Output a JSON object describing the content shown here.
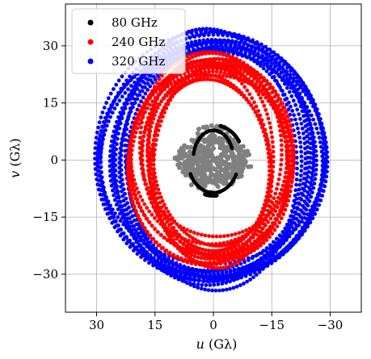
{
  "chart_data": {
    "type": "scatter",
    "xlabel_var": "u",
    "xlabel_unit": "(Gλ)",
    "ylabel_var": "v",
    "ylabel_unit": "(Gλ)",
    "xlim": [
      38,
      -38
    ],
    "ylim": [
      -40,
      41
    ],
    "x_ticks": [
      30,
      15,
      0,
      -15,
      -30
    ],
    "y_ticks": [
      30,
      15,
      0,
      -15,
      -30
    ],
    "x_tick_labels": [
      "30",
      "15",
      "0",
      "−15",
      "−30"
    ],
    "y_tick_labels": [
      "30",
      "15",
      "0",
      "−15",
      "−30"
    ],
    "grid": true,
    "legend_position": "upper-left",
    "series": [
      {
        "name": "80 GHz",
        "color": "#000000",
        "pattern": "inner-arcs",
        "rx_range": [
          5,
          8.5
        ],
        "ry_range": [
          6.5,
          9.5
        ]
      },
      {
        "name": "240 GHz",
        "color": "#ff0000",
        "pattern": "elliptical-tracks",
        "rx_range": [
          15,
          22
        ],
        "ry_range": [
          20,
          28
        ]
      },
      {
        "name": "320 GHz",
        "color": "#0000ff",
        "pattern": "elliptical-tracks",
        "rx_range": [
          22,
          30
        ],
        "ry_range": [
          28,
          35
        ]
      }
    ],
    "unlabeled_series": [
      {
        "color": "#808080",
        "pattern": "central-cluster",
        "rx_range": [
          0,
          9
        ],
        "ry_range": [
          0,
          10
        ]
      }
    ]
  }
}
